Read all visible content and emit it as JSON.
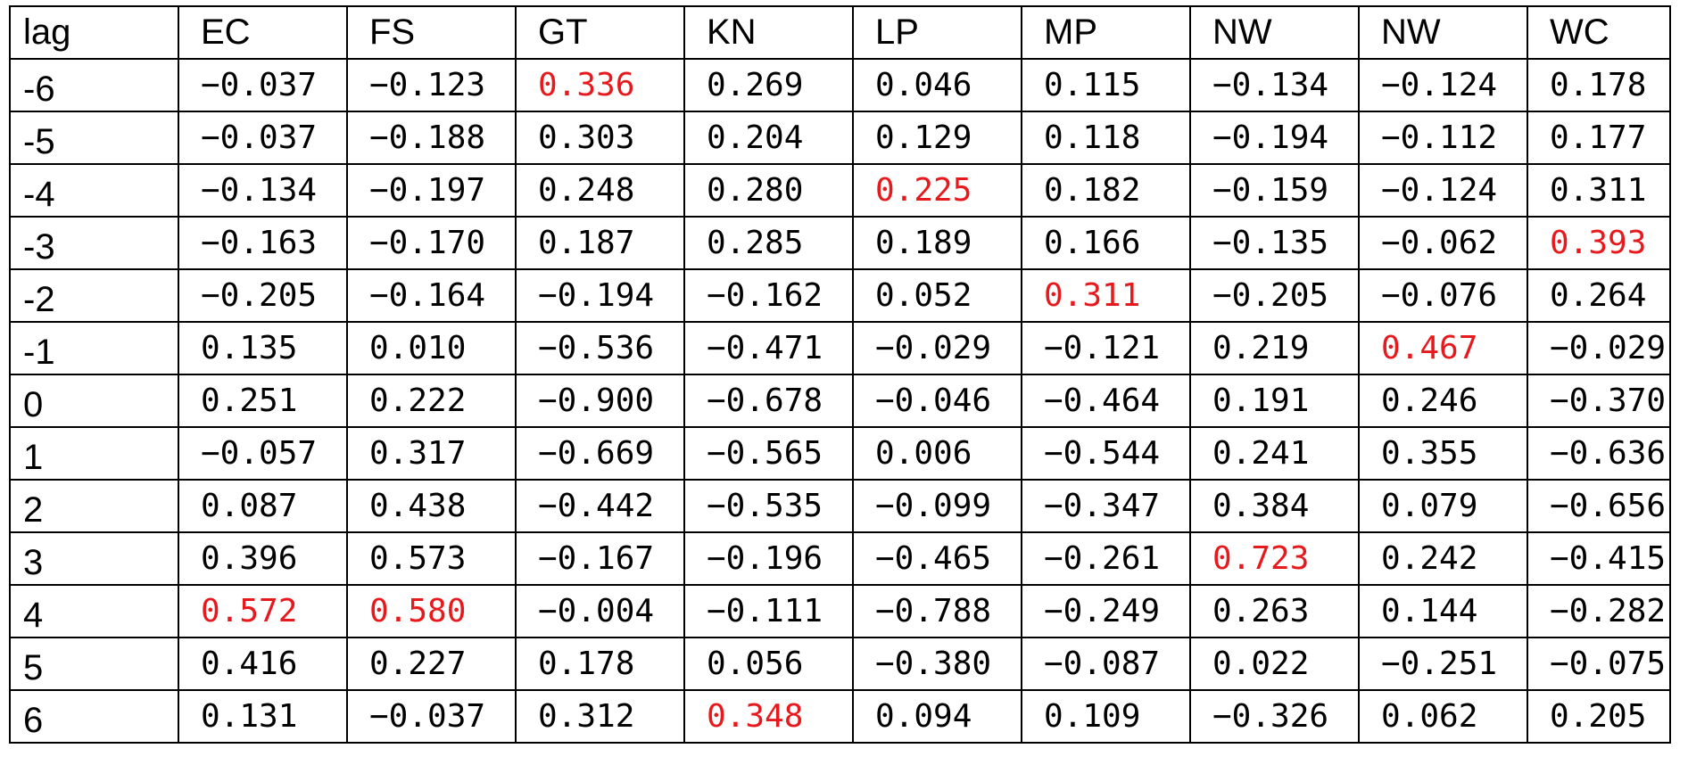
{
  "table": {
    "headers": [
      "lag",
      "EC",
      "FS",
      "GT",
      "KN",
      "LP",
      "MP",
      "NW",
      "NW",
      "WC"
    ],
    "highlight_color": "#e8191c",
    "rows": [
      {
        "lag": "-6",
        "cells": [
          "−0.037",
          "−0.123",
          "0.336",
          "0.269",
          "0.046",
          "0.115",
          "−0.134",
          "−0.124",
          "0.178"
        ],
        "highlight": [
          2
        ]
      },
      {
        "lag": "-5",
        "cells": [
          "−0.037",
          "−0.188",
          "0.303",
          "0.204",
          "0.129",
          "0.118",
          "−0.194",
          "−0.112",
          "0.177"
        ],
        "highlight": []
      },
      {
        "lag": "-4",
        "cells": [
          "−0.134",
          "−0.197",
          "0.248",
          "0.280",
          "0.225",
          "0.182",
          "−0.159",
          "−0.124",
          "0.311"
        ],
        "highlight": [
          4
        ]
      },
      {
        "lag": "-3",
        "cells": [
          "−0.163",
          "−0.170",
          "0.187",
          "0.285",
          "0.189",
          "0.166",
          "−0.135",
          "−0.062",
          "0.393"
        ],
        "highlight": [
          8
        ]
      },
      {
        "lag": "-2",
        "cells": [
          "−0.205",
          "−0.164",
          "−0.194",
          "−0.162",
          "0.052",
          "0.311",
          "−0.205",
          "−0.076",
          "0.264"
        ],
        "highlight": [
          5
        ]
      },
      {
        "lag": "-1",
        "cells": [
          "0.135",
          "0.010",
          "−0.536",
          "−0.471",
          "−0.029",
          "−0.121",
          "0.219",
          "0.467",
          "−0.029"
        ],
        "highlight": [
          7
        ]
      },
      {
        "lag": "0",
        "cells": [
          "0.251",
          "0.222",
          "−0.900",
          "−0.678",
          "−0.046",
          "−0.464",
          "0.191",
          "0.246",
          "−0.370"
        ],
        "highlight": []
      },
      {
        "lag": "1",
        "cells": [
          "−0.057",
          "0.317",
          "−0.669",
          "−0.565",
          "0.006",
          "−0.544",
          "0.241",
          "0.355",
          "−0.636"
        ],
        "highlight": []
      },
      {
        "lag": "2",
        "cells": [
          "0.087",
          "0.438",
          "−0.442",
          "−0.535",
          "−0.099",
          "−0.347",
          "0.384",
          "0.079",
          "−0.656"
        ],
        "highlight": []
      },
      {
        "lag": "3",
        "cells": [
          "0.396",
          "0.573",
          "−0.167",
          "−0.196",
          "−0.465",
          "−0.261",
          "0.723",
          "0.242",
          "−0.415"
        ],
        "highlight": [
          6
        ]
      },
      {
        "lag": "4",
        "cells": [
          "0.572",
          "0.580",
          "−0.004",
          "−0.111",
          "−0.788",
          "−0.249",
          "0.263",
          "0.144",
          "−0.282"
        ],
        "highlight": [
          0,
          1
        ]
      },
      {
        "lag": "5",
        "cells": [
          "0.416",
          "0.227",
          "0.178",
          "0.056",
          "−0.380",
          "−0.087",
          "0.022",
          "−0.251",
          "−0.075"
        ],
        "highlight": []
      },
      {
        "lag": "6",
        "cells": [
          "0.131",
          "−0.037",
          "0.312",
          "0.348",
          "0.094",
          "0.109",
          "−0.326",
          "0.062",
          "0.205"
        ],
        "highlight": [
          3
        ]
      }
    ]
  }
}
